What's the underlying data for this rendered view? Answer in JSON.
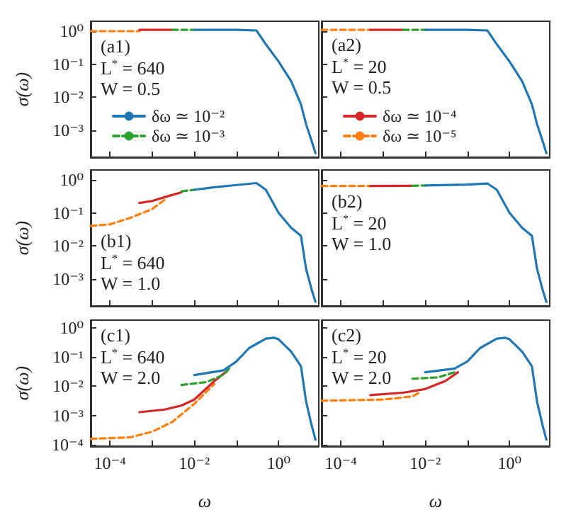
{
  "chart_data": [
    {
      "type": "line",
      "ylabel": "σ(ω)",
      "annotations": [
        "(a1)",
        "L$^{*}$ = 640",
        "W = 0.5"
      ],
      "log": "xy",
      "marker": "none",
      "tick_labels": "y",
      "legend": "bottom left",
      "xlim": [
        3.5e-05,
        9
      ],
      "ylim": [
        0.00015,
        2
      ],
      "xticks": [
        {
          "value": 0.0001,
          "label": null
        },
        {
          "value": 0.001,
          "label": null
        },
        {
          "value": 0.01,
          "label": null
        },
        {
          "value": 0.1,
          "label": null
        },
        {
          "value": 1,
          "label": null
        }
      ],
      "yticks": [
        {
          "value": 0.001,
          "label": "10⁻³"
        },
        {
          "value": 0.01,
          "label": "10⁻²"
        },
        {
          "value": 0.1,
          "label": "10⁻¹"
        },
        {
          "value": 1,
          "label": "10⁰"
        }
      ],
      "series": [
        {
          "name": "δω ≃ 10⁻²",
          "color": "#1f77b4",
          "line_style": "solid",
          "x": [
            0.01,
            0.1,
            0.3,
            0.5,
            1,
            2,
            3.4,
            4.5,
            6,
            7.5
          ],
          "values": [
            1.1,
            1.1,
            1.05,
            0.4,
            0.12,
            0.03,
            0.006,
            0.0015,
            0.0005,
            0.0002
          ]
        },
        {
          "name": "δω ≃ 10⁻³",
          "color": "#2ca02c",
          "line_style": "dashed",
          "x": [
            0.003,
            0.01
          ],
          "values": [
            1.1,
            1.1
          ]
        },
        {
          "color": "#d62728",
          "line_style": "solid",
          "x": [
            0.0005,
            0.003
          ],
          "values": [
            1.1,
            1.1
          ]
        },
        {
          "color": "#ff7f0e",
          "line_style": "dashed",
          "x": [
            3.5e-05,
            0.0005
          ],
          "values": [
            1,
            1
          ]
        }
      ]
    },
    {
      "type": "line",
      "annotations": [
        "(a2)",
        "L$^{*}$ = 20",
        "W = 0.5"
      ],
      "log": "xy",
      "marker": "none",
      "tick_labels": false,
      "legend": "bottom left",
      "xlim": [
        3.5e-05,
        9
      ],
      "ylim": [
        0.00015,
        2
      ],
      "xticks": [
        {
          "value": 0.0001,
          "label": null
        },
        {
          "value": 0.001,
          "label": null
        },
        {
          "value": 0.01,
          "label": null
        },
        {
          "value": 0.1,
          "label": null
        },
        {
          "value": 1,
          "label": null
        }
      ],
      "yticks": [
        {
          "value": 0.001,
          "label": null
        },
        {
          "value": 0.01,
          "label": null
        },
        {
          "value": 0.1,
          "label": null
        },
        {
          "value": 1,
          "label": null
        }
      ],
      "series": [
        {
          "color": "#1f77b4",
          "line_style": "solid",
          "x": [
            0.01,
            0.1,
            0.3,
            0.5,
            1,
            2,
            3.4,
            4.5,
            6,
            7.5
          ],
          "values": [
            1.1,
            1.1,
            1.05,
            0.4,
            0.12,
            0.03,
            0.006,
            0.0015,
            0.0005,
            0.0002
          ]
        },
        {
          "color": "#2ca02c",
          "line_style": "dashed",
          "x": [
            0.003,
            0.01
          ],
          "values": [
            1.1,
            1.1
          ]
        },
        {
          "name": "δω ≃ 10⁻⁴",
          "color": "#d62728",
          "line_style": "solid",
          "x": [
            0.0005,
            0.003
          ],
          "values": [
            1.1,
            1.1
          ]
        },
        {
          "name": "δω ≃ 10⁻⁵",
          "color": "#ff7f0e",
          "line_style": "dashed",
          "x": [
            3.5e-05,
            0.0005
          ],
          "values": [
            1.1,
            1.1
          ]
        }
      ]
    },
    {
      "type": "line",
      "ylabel": "σ(ω)",
      "annotations": [
        "(b1)",
        "L$^{*}$ = 640",
        "W = 1.0"
      ],
      "log": "xy",
      "marker": "none",
      "tick_labels": "y",
      "xlim": [
        3.5e-05,
        9
      ],
      "ylim": [
        0.00015,
        2
      ],
      "xticks": [
        {
          "value": 0.0001,
          "label": null
        },
        {
          "value": 0.001,
          "label": null
        },
        {
          "value": 0.01,
          "label": null
        },
        {
          "value": 0.1,
          "label": null
        },
        {
          "value": 1,
          "label": null
        }
      ],
      "yticks": [
        {
          "value": 0.001,
          "label": "10⁻³"
        },
        {
          "value": 0.01,
          "label": "10⁻²"
        },
        {
          "value": 0.1,
          "label": "10⁻¹"
        },
        {
          "value": 1,
          "label": "10⁰"
        }
      ],
      "series": [
        {
          "color": "#1f77b4",
          "line_style": "solid",
          "x": [
            0.01,
            0.03,
            0.1,
            0.3,
            0.5,
            1,
            2,
            3.4,
            4.5,
            6,
            7.5
          ],
          "values": [
            0.5,
            0.6,
            0.7,
            0.8,
            0.5,
            0.1,
            0.035,
            0.02,
            0.002,
            0.0005,
            0.0002
          ]
        },
        {
          "color": "#2ca02c",
          "line_style": "dashed",
          "x": [
            0.005,
            0.01
          ],
          "values": [
            0.45,
            0.5
          ]
        },
        {
          "color": "#d62728",
          "line_style": "solid",
          "x": [
            0.0005,
            0.001,
            0.002,
            0.005
          ],
          "values": [
            0.2,
            0.23,
            0.3,
            0.42
          ]
        },
        {
          "color": "#ff7f0e",
          "line_style": "dashed",
          "x": [
            3.5e-05,
            0.0001,
            0.0003,
            0.001,
            0.002
          ],
          "values": [
            0.04,
            0.045,
            0.07,
            0.13,
            0.25
          ]
        }
      ]
    },
    {
      "type": "line",
      "annotations": [
        "(b2)",
        "L$^{*}$ = 20",
        "W = 1.0"
      ],
      "log": "xy",
      "marker": "none",
      "tick_labels": false,
      "xlim": [
        3.5e-05,
        9
      ],
      "ylim": [
        0.00015,
        2
      ],
      "xticks": [
        {
          "value": 0.0001,
          "label": null
        },
        {
          "value": 0.001,
          "label": null
        },
        {
          "value": 0.01,
          "label": null
        },
        {
          "value": 0.1,
          "label": null
        },
        {
          "value": 1,
          "label": null
        }
      ],
      "yticks": [
        {
          "value": 0.001,
          "label": null
        },
        {
          "value": 0.01,
          "label": null
        },
        {
          "value": 0.1,
          "label": null
        },
        {
          "value": 1,
          "label": null
        }
      ],
      "series": [
        {
          "color": "#1f77b4",
          "line_style": "solid",
          "x": [
            0.01,
            0.1,
            0.3,
            0.5,
            1,
            2,
            3.4,
            4.5,
            6,
            7.5
          ],
          "values": [
            0.68,
            0.72,
            0.78,
            0.5,
            0.1,
            0.035,
            0.02,
            0.002,
            0.0005,
            0.0002
          ]
        },
        {
          "color": "#2ca02c",
          "line_style": "dashed",
          "x": [
            0.005,
            0.01
          ],
          "values": [
            0.66,
            0.68
          ]
        },
        {
          "color": "#d62728",
          "line_style": "solid",
          "x": [
            0.0005,
            0.005
          ],
          "values": [
            0.65,
            0.66
          ]
        },
        {
          "color": "#ff7f0e",
          "line_style": "dashed",
          "x": [
            3.5e-05,
            0.0005
          ],
          "values": [
            0.65,
            0.65
          ]
        }
      ]
    },
    {
      "type": "line",
      "xlabel": "ω",
      "ylabel": "σ(ω)",
      "annotations": [
        "(c1)",
        "L$^{*}$ = 640",
        "W = 2.0"
      ],
      "log": "xy",
      "marker": "none",
      "xlim": [
        3.5e-05,
        9
      ],
      "ylim": [
        9e-05,
        1.8
      ],
      "xticks": [
        {
          "value": 0.0001,
          "label": "10⁻⁴"
        },
        {
          "value": 0.001,
          "label": null
        },
        {
          "value": 0.01,
          "label": "10⁻²"
        },
        {
          "value": 0.1,
          "label": null
        },
        {
          "value": 1,
          "label": "10⁰"
        }
      ],
      "yticks": [
        {
          "value": 0.0001,
          "label": "10⁻⁴"
        },
        {
          "value": 0.001,
          "label": "10⁻³"
        },
        {
          "value": 0.01,
          "label": "10⁻²"
        },
        {
          "value": 0.1,
          "label": "10⁻¹"
        },
        {
          "value": 1,
          "label": "10⁰"
        }
      ],
      "series": [
        {
          "color": "#1f77b4",
          "line_style": "solid",
          "x": [
            0.01,
            0.05,
            0.1,
            0.2,
            0.5,
            0.8,
            1,
            2,
            3.4,
            4.5,
            6,
            7.5
          ],
          "values": [
            0.024,
            0.035,
            0.07,
            0.2,
            0.42,
            0.45,
            0.4,
            0.15,
            0.048,
            0.003,
            0.0005,
            0.00015
          ]
        },
        {
          "color": "#2ca02c",
          "line_style": "dashed",
          "x": [
            0.005,
            0.02,
            0.05,
            0.07
          ],
          "values": [
            0.011,
            0.014,
            0.025,
            0.042
          ]
        },
        {
          "color": "#d62728",
          "line_style": "solid",
          "x": [
            0.0005,
            0.002,
            0.005,
            0.01,
            0.03,
            0.06
          ],
          "values": [
            0.0013,
            0.0016,
            0.0022,
            0.0035,
            0.015,
            0.033
          ]
        },
        {
          "color": "#ff7f0e",
          "line_style": "dashed",
          "x": [
            3.5e-05,
            0.0003,
            0.001,
            0.003,
            0.01,
            0.03
          ],
          "values": [
            0.00016,
            0.00018,
            0.00028,
            0.0006,
            0.0025,
            0.012
          ]
        }
      ]
    },
    {
      "type": "line",
      "xlabel": "ω",
      "annotations": [
        "(c2)",
        "L$^{*}$ = 20",
        "W = 2.0"
      ],
      "log": "xy",
      "marker": "none",
      "tick_labels": "x",
      "xlim": [
        3.5e-05,
        9
      ],
      "ylim": [
        9e-05,
        1.8
      ],
      "xticks": [
        {
          "value": 0.0001,
          "label": "10⁻⁴"
        },
        {
          "value": 0.001,
          "label": null
        },
        {
          "value": 0.01,
          "label": "10⁻²"
        },
        {
          "value": 0.1,
          "label": null
        },
        {
          "value": 1,
          "label": "10⁰"
        }
      ],
      "yticks": [
        {
          "value": 0.0001,
          "label": null
        },
        {
          "value": 0.001,
          "label": null
        },
        {
          "value": 0.01,
          "label": null
        },
        {
          "value": 0.1,
          "label": null
        },
        {
          "value": 1,
          "label": null
        }
      ],
      "series": [
        {
          "color": "#1f77b4",
          "line_style": "solid",
          "x": [
            0.01,
            0.05,
            0.1,
            0.2,
            0.5,
            0.8,
            1,
            2,
            3.4,
            4.5,
            6,
            7.5
          ],
          "values": [
            0.03,
            0.04,
            0.07,
            0.2,
            0.42,
            0.45,
            0.4,
            0.15,
            0.048,
            0.003,
            0.0005,
            0.00015
          ]
        },
        {
          "color": "#2ca02c",
          "line_style": "dashed",
          "x": [
            0.005,
            0.02,
            0.05
          ],
          "values": [
            0.018,
            0.02,
            0.03
          ]
        },
        {
          "color": "#d62728",
          "line_style": "solid",
          "x": [
            0.0005,
            0.003,
            0.01,
            0.03,
            0.06
          ],
          "values": [
            0.005,
            0.006,
            0.008,
            0.015,
            0.03
          ]
        },
        {
          "color": "#ff7f0e",
          "line_style": "dashed",
          "x": [
            3.5e-05,
            0.001,
            0.005,
            0.008
          ],
          "values": [
            0.0032,
            0.0035,
            0.0045,
            0.0065
          ]
        }
      ]
    }
  ]
}
